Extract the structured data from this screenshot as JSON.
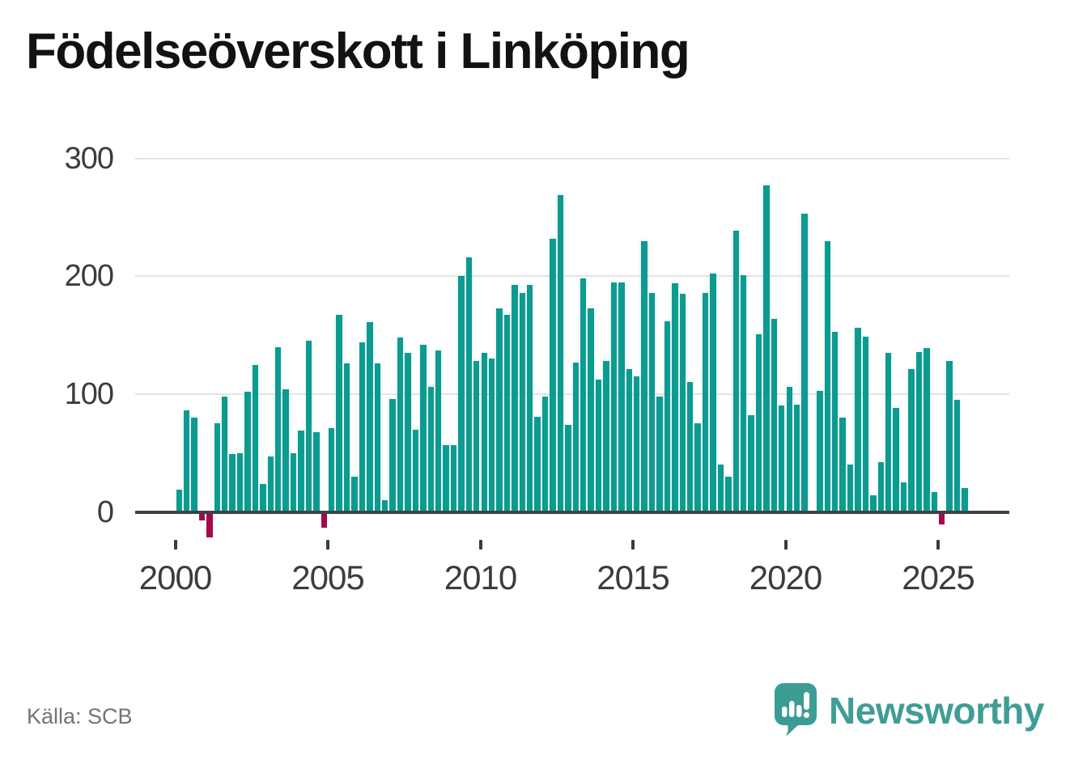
{
  "chart_data": {
    "type": "bar",
    "title": "Födelseöverskott i Linköping",
    "x_unit": "quarter",
    "x_start": "2000-Q1",
    "x_end": "2025-Q4",
    "xtick_labels": [
      "2000",
      "2005",
      "2010",
      "2015",
      "2020",
      "2025"
    ],
    "ytick_labels": [
      "0",
      "100",
      "200",
      "300"
    ],
    "yticks": [
      0,
      100,
      200,
      300
    ],
    "ylim": [
      -30,
      310
    ],
    "grid": "horizontal",
    "legend": "none",
    "values": [
      19,
      86,
      80,
      -6,
      -20,
      75,
      98,
      49,
      50,
      102,
      125,
      24,
      47,
      140,
      104,
      50,
      69,
      145,
      68,
      -12,
      71,
      167,
      126,
      30,
      144,
      161,
      126,
      10,
      96,
      148,
      135,
      70,
      142,
      106,
      137,
      57,
      57,
      200,
      216,
      128,
      135,
      130,
      173,
      167,
      193,
      186,
      193,
      81,
      98,
      232,
      269,
      74,
      127,
      198,
      173,
      112,
      128,
      195,
      195,
      121,
      115,
      230,
      186,
      98,
      162,
      194,
      185,
      110,
      75,
      186,
      202,
      40,
      30,
      239,
      201,
      82,
      151,
      277,
      164,
      90,
      106,
      91,
      253,
      null,
      103,
      230,
      153,
      80,
      40,
      156,
      149,
      14,
      42,
      135,
      88,
      25,
      121,
      136,
      139,
      17,
      -9,
      128,
      95,
      20
    ]
  },
  "colors": {
    "bar_positive": "#0d9a8f",
    "bar_negative": "#a30a4b",
    "grid": "#e4e4e4",
    "axis": "#3d4345",
    "tick_text": "#3c3c3c",
    "title_text": "#121212",
    "source_text": "#757575",
    "brand_teal": "#3f9d96"
  },
  "source": {
    "label": "Källa: SCB"
  },
  "branding": {
    "wordmark": "Newsworthy",
    "logo_icon": "speech-bubble-bar-chart-icon"
  }
}
